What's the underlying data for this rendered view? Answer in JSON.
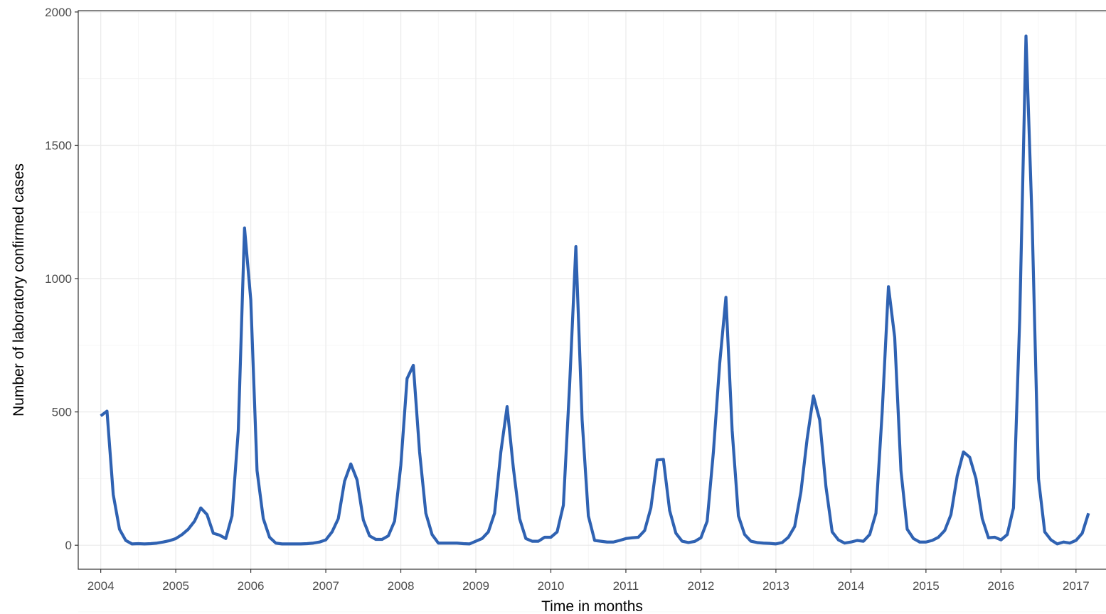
{
  "chart_data": {
    "type": "line",
    "xlabel": "Time in months",
    "ylabel": "Number of laboratory confirmed cases",
    "xlim": [
      2003.7,
      2017.4
    ],
    "ylim": [
      -90,
      2005
    ],
    "x_ticks": [
      "2004",
      "2005",
      "2006",
      "2007",
      "2008",
      "2009",
      "2010",
      "2011",
      "2012",
      "2013",
      "2014",
      "2015",
      "2016",
      "2017"
    ],
    "y_ticks": [
      "0",
      "500",
      "1000",
      "1500",
      "2000"
    ],
    "grid": true,
    "legend": "none",
    "start": "2004-01",
    "series": [
      {
        "color": "#2f62b2",
        "values": [
          485,
          503,
          190,
          60,
          18,
          5,
          6,
          5,
          6,
          8,
          12,
          17,
          25,
          40,
          60,
          90,
          140,
          115,
          45,
          38,
          25,
          110,
          430,
          1190,
          920,
          280,
          100,
          30,
          8,
          5,
          5,
          5,
          5,
          6,
          8,
          12,
          20,
          50,
          100,
          240,
          305,
          245,
          95,
          35,
          22,
          22,
          35,
          90,
          300,
          625,
          675,
          350,
          120,
          40,
          8,
          8,
          8,
          8,
          6,
          5,
          15,
          25,
          50,
          120,
          350,
          520,
          290,
          100,
          25,
          15,
          15,
          30,
          30,
          50,
          150,
          600,
          1120,
          470,
          110,
          18,
          15,
          12,
          12,
          18,
          25,
          28,
          30,
          55,
          140,
          320,
          322,
          130,
          45,
          15,
          10,
          14,
          28,
          90,
          350,
          680,
          930,
          430,
          110,
          40,
          15,
          10,
          8,
          7,
          5,
          10,
          30,
          70,
          200,
          400,
          560,
          470,
          220,
          50,
          20,
          8,
          12,
          18,
          15,
          40,
          120,
          500,
          970,
          780,
          280,
          60,
          25,
          12,
          12,
          18,
          30,
          55,
          115,
          260,
          350,
          330,
          250,
          100,
          28,
          30,
          20,
          40,
          140,
          850,
          1910,
          1200,
          250,
          50,
          20,
          5,
          12,
          8,
          18,
          45,
          120
        ]
      }
    ]
  }
}
